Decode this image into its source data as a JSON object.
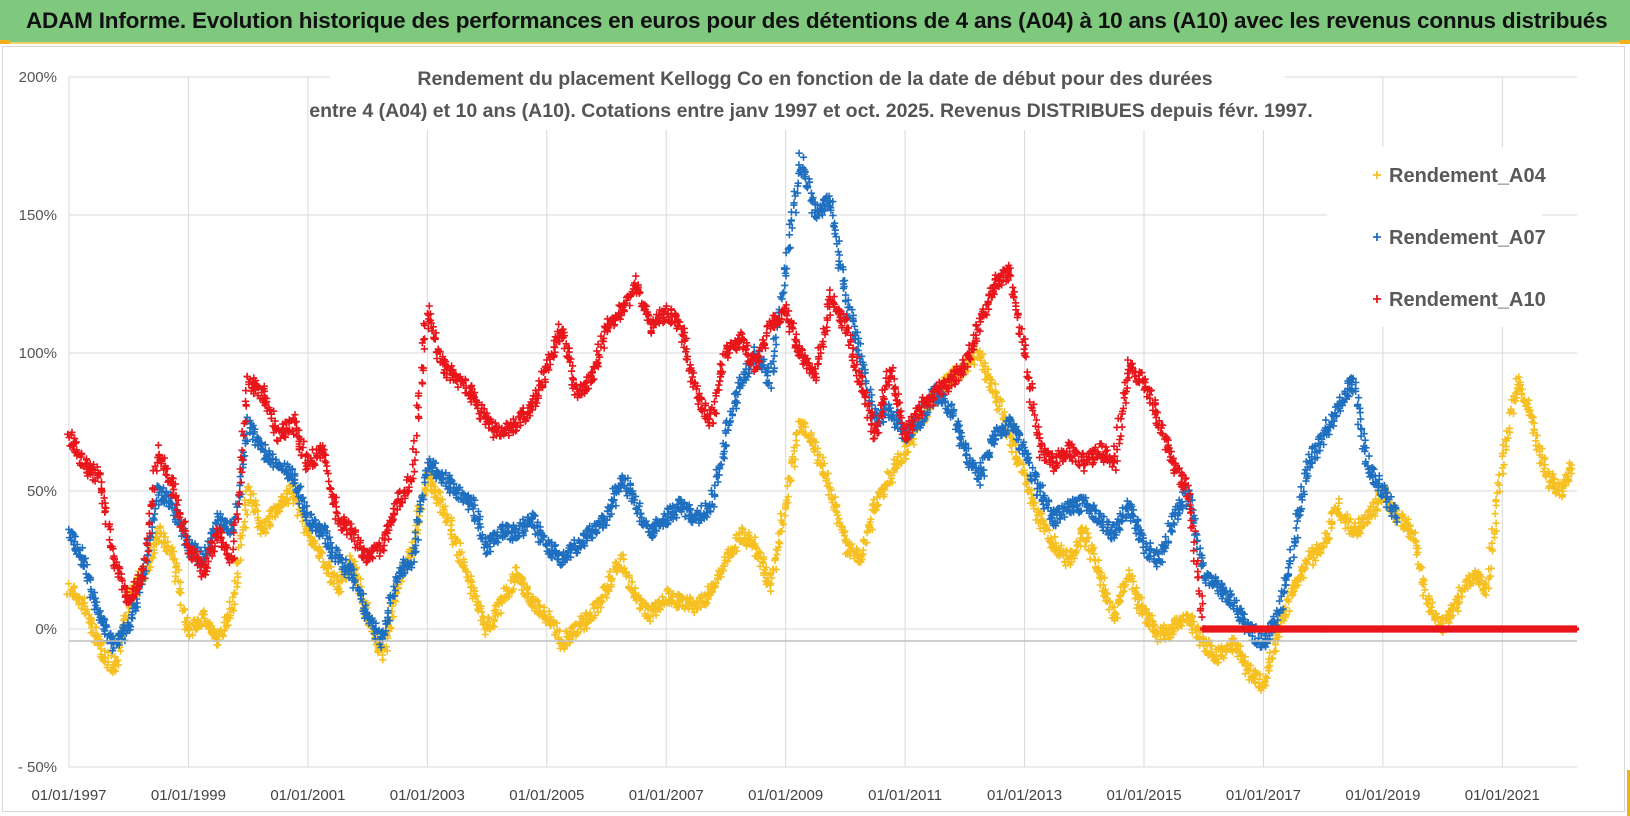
{
  "header": {
    "title": "ADAM Informe. Evolution historique des performances en euros pour des détentions de 4 ans (A04) à 10 ans (A10) avec les revenus connus distribués"
  },
  "chart_data": {
    "type": "scatter",
    "title_lines": [
      "Rendement du placement Kellogg Co en fonction de la date de début pour des durées",
      "entre 4 (A04) et 10 ans (A10). Cotations entre janv 1997 et oct. 2025.  Revenus DISTRIBUES depuis févr. 1997."
    ],
    "marker": "+",
    "xlim": [
      1997.0,
      2022.25
    ],
    "ylim": [
      -50,
      200
    ],
    "y_ticks": [
      -50,
      0,
      50,
      100,
      150,
      200
    ],
    "y_tick_labels": [
      "- 50%",
      "0%",
      "50%",
      "100%",
      "150%",
      "200%"
    ],
    "x_ticks": [
      1997,
      1999,
      2001,
      2003,
      2005,
      2007,
      2009,
      2011,
      2013,
      2015,
      2017,
      2019,
      2021
    ],
    "x_tick_labels": [
      "01/01/1997",
      "01/01/1999",
      "01/01/2001",
      "01/01/2003",
      "01/01/2005",
      "01/01/2007",
      "01/01/2009",
      "01/01/2011",
      "01/01/2013",
      "01/01/2015",
      "01/01/2017",
      "01/01/2019",
      "01/01/2021"
    ],
    "legend_position": "right",
    "series": [
      {
        "name": "Rendement_A04",
        "color": "#f5c020",
        "points": [
          [
            1997.0,
            15
          ],
          [
            1997.25,
            8
          ],
          [
            1997.5,
            -5
          ],
          [
            1997.75,
            -15
          ],
          [
            1998.0,
            10
          ],
          [
            1998.25,
            20
          ],
          [
            1998.5,
            35
          ],
          [
            1998.75,
            25
          ],
          [
            1999.0,
            -2
          ],
          [
            1999.25,
            5
          ],
          [
            1999.5,
            -5
          ],
          [
            1999.75,
            10
          ],
          [
            2000.0,
            50
          ],
          [
            2000.25,
            35
          ],
          [
            2000.5,
            45
          ],
          [
            2000.75,
            50
          ],
          [
            2001.0,
            35
          ],
          [
            2001.25,
            25
          ],
          [
            2001.5,
            15
          ],
          [
            2001.75,
            25
          ],
          [
            2002.0,
            5
          ],
          [
            2002.25,
            -10
          ],
          [
            2002.5,
            15
          ],
          [
            2002.75,
            30
          ],
          [
            2003.0,
            55
          ],
          [
            2003.25,
            45
          ],
          [
            2003.5,
            30
          ],
          [
            2003.75,
            15
          ],
          [
            2004.0,
            0
          ],
          [
            2004.25,
            10
          ],
          [
            2004.5,
            20
          ],
          [
            2004.75,
            10
          ],
          [
            2005.0,
            5
          ],
          [
            2005.25,
            -5
          ],
          [
            2005.5,
            0
          ],
          [
            2005.75,
            5
          ],
          [
            2006.0,
            15
          ],
          [
            2006.25,
            25
          ],
          [
            2006.5,
            10
          ],
          [
            2006.75,
            5
          ],
          [
            2007.0,
            12
          ],
          [
            2007.25,
            10
          ],
          [
            2007.5,
            8
          ],
          [
            2007.75,
            13
          ],
          [
            2008.0,
            25
          ],
          [
            2008.25,
            35
          ],
          [
            2008.5,
            30
          ],
          [
            2008.75,
            15
          ],
          [
            2009.0,
            45
          ],
          [
            2009.25,
            75
          ],
          [
            2009.5,
            65
          ],
          [
            2009.75,
            50
          ],
          [
            2010.0,
            30
          ],
          [
            2010.25,
            25
          ],
          [
            2010.5,
            45
          ],
          [
            2010.75,
            55
          ],
          [
            2011.0,
            65
          ],
          [
            2011.25,
            75
          ],
          [
            2011.5,
            85
          ],
          [
            2011.75,
            90
          ],
          [
            2012.0,
            95
          ],
          [
            2012.25,
            100
          ],
          [
            2012.5,
            85
          ],
          [
            2012.75,
            70
          ],
          [
            2013.0,
            55
          ],
          [
            2013.25,
            40
          ],
          [
            2013.5,
            30
          ],
          [
            2013.75,
            25
          ],
          [
            2014.0,
            35
          ],
          [
            2014.25,
            20
          ],
          [
            2014.5,
            5
          ],
          [
            2014.75,
            20
          ],
          [
            2015.0,
            5
          ],
          [
            2015.25,
            -2
          ],
          [
            2015.5,
            0
          ],
          [
            2015.75,
            5
          ],
          [
            2016.0,
            -5
          ],
          [
            2016.25,
            -10
          ],
          [
            2016.5,
            -5
          ],
          [
            2016.75,
            -15
          ],
          [
            2017.0,
            -20
          ],
          [
            2017.25,
            0
          ],
          [
            2017.5,
            15
          ],
          [
            2017.75,
            25
          ],
          [
            2018.0,
            30
          ],
          [
            2018.25,
            45
          ],
          [
            2018.5,
            35
          ],
          [
            2018.75,
            40
          ],
          [
            2019.0,
            50
          ],
          [
            2019.25,
            40
          ],
          [
            2019.5,
            35
          ],
          [
            2019.75,
            10
          ],
          [
            2020.0,
            0
          ],
          [
            2020.25,
            10
          ],
          [
            2020.5,
            20
          ],
          [
            2020.75,
            15
          ],
          [
            2021.0,
            60
          ],
          [
            2021.25,
            90
          ],
          [
            2021.5,
            75
          ],
          [
            2021.75,
            55
          ],
          [
            2022.0,
            50
          ],
          [
            2022.15,
            60
          ]
        ]
      },
      {
        "name": "Rendement_A07",
        "color": "#1f6fc0",
        "points": [
          [
            1997.0,
            35
          ],
          [
            1997.25,
            25
          ],
          [
            1997.5,
            5
          ],
          [
            1997.75,
            -5
          ],
          [
            1998.0,
            0
          ],
          [
            1998.25,
            20
          ],
          [
            1998.5,
            50
          ],
          [
            1998.75,
            45
          ],
          [
            1999.0,
            30
          ],
          [
            1999.25,
            25
          ],
          [
            1999.5,
            40
          ],
          [
            1999.75,
            35
          ],
          [
            2000.0,
            75
          ],
          [
            2000.25,
            65
          ],
          [
            2000.5,
            60
          ],
          [
            2000.75,
            55
          ],
          [
            2001.0,
            40
          ],
          [
            2001.25,
            35
          ],
          [
            2001.5,
            25
          ],
          [
            2001.75,
            20
          ],
          [
            2002.0,
            5
          ],
          [
            2002.25,
            -5
          ],
          [
            2002.5,
            20
          ],
          [
            2002.75,
            25
          ],
          [
            2003.0,
            60
          ],
          [
            2003.25,
            55
          ],
          [
            2003.5,
            50
          ],
          [
            2003.75,
            45
          ],
          [
            2004.0,
            30
          ],
          [
            2004.25,
            35
          ],
          [
            2004.5,
            35
          ],
          [
            2004.75,
            40
          ],
          [
            2005.0,
            30
          ],
          [
            2005.25,
            25
          ],
          [
            2005.5,
            30
          ],
          [
            2005.75,
            35
          ],
          [
            2006.0,
            40
          ],
          [
            2006.25,
            55
          ],
          [
            2006.5,
            45
          ],
          [
            2006.75,
            35
          ],
          [
            2007.0,
            40
          ],
          [
            2007.25,
            45
          ],
          [
            2007.5,
            40
          ],
          [
            2007.75,
            45
          ],
          [
            2008.0,
            70
          ],
          [
            2008.25,
            90
          ],
          [
            2008.5,
            100
          ],
          [
            2008.75,
            90
          ],
          [
            2009.0,
            130
          ],
          [
            2009.25,
            170
          ],
          [
            2009.5,
            150
          ],
          [
            2009.75,
            155
          ],
          [
            2010.0,
            120
          ],
          [
            2010.25,
            100
          ],
          [
            2010.5,
            75
          ],
          [
            2010.75,
            80
          ],
          [
            2011.0,
            70
          ],
          [
            2011.25,
            75
          ],
          [
            2011.5,
            85
          ],
          [
            2011.75,
            80
          ],
          [
            2012.0,
            65
          ],
          [
            2012.25,
            55
          ],
          [
            2012.5,
            70
          ],
          [
            2012.75,
            75
          ],
          [
            2013.0,
            65
          ],
          [
            2013.25,
            50
          ],
          [
            2013.5,
            40
          ],
          [
            2013.75,
            45
          ],
          [
            2014.0,
            45
          ],
          [
            2014.25,
            40
          ],
          [
            2014.5,
            35
          ],
          [
            2014.75,
            45
          ],
          [
            2015.0,
            30
          ],
          [
            2015.25,
            25
          ],
          [
            2015.5,
            40
          ],
          [
            2015.75,
            50
          ],
          [
            2016.0,
            20
          ],
          [
            2016.25,
            15
          ],
          [
            2016.5,
            10
          ],
          [
            2016.75,
            0
          ],
          [
            2017.0,
            -5
          ],
          [
            2017.25,
            5
          ],
          [
            2017.5,
            30
          ],
          [
            2017.75,
            60
          ],
          [
            2018.0,
            70
          ],
          [
            2018.25,
            80
          ],
          [
            2018.5,
            90
          ],
          [
            2018.75,
            60
          ],
          [
            2019.0,
            50
          ],
          [
            2019.25,
            40
          ]
        ]
      },
      {
        "name": "Rendement_A10",
        "color": "#e8151b",
        "points": [
          [
            1997.0,
            70
          ],
          [
            1997.25,
            60
          ],
          [
            1997.5,
            55
          ],
          [
            1997.75,
            25
          ],
          [
            1998.0,
            10
          ],
          [
            1998.25,
            20
          ],
          [
            1998.5,
            65
          ],
          [
            1998.75,
            50
          ],
          [
            1999.0,
            30
          ],
          [
            1999.25,
            20
          ],
          [
            1999.5,
            35
          ],
          [
            1999.75,
            25
          ],
          [
            2000.0,
            90
          ],
          [
            2000.25,
            85
          ],
          [
            2000.5,
            70
          ],
          [
            2000.75,
            75
          ],
          [
            2001.0,
            60
          ],
          [
            2001.25,
            65
          ],
          [
            2001.5,
            40
          ],
          [
            2001.75,
            35
          ],
          [
            2002.0,
            25
          ],
          [
            2002.25,
            30
          ],
          [
            2002.5,
            45
          ],
          [
            2002.75,
            55
          ],
          [
            2003.0,
            115
          ],
          [
            2003.25,
            95
          ],
          [
            2003.5,
            90
          ],
          [
            2003.75,
            85
          ],
          [
            2004.0,
            75
          ],
          [
            2004.25,
            70
          ],
          [
            2004.5,
            75
          ],
          [
            2004.75,
            80
          ],
          [
            2005.0,
            95
          ],
          [
            2005.25,
            110
          ],
          [
            2005.5,
            85
          ],
          [
            2005.75,
            90
          ],
          [
            2006.0,
            110
          ],
          [
            2006.25,
            115
          ],
          [
            2006.5,
            125
          ],
          [
            2006.75,
            110
          ],
          [
            2007.0,
            115
          ],
          [
            2007.25,
            110
          ],
          [
            2007.5,
            85
          ],
          [
            2007.75,
            75
          ],
          [
            2008.0,
            100
          ],
          [
            2008.25,
            105
          ],
          [
            2008.5,
            95
          ],
          [
            2008.75,
            110
          ],
          [
            2009.0,
            115
          ],
          [
            2009.25,
            100
          ],
          [
            2009.5,
            90
          ],
          [
            2009.75,
            120
          ],
          [
            2010.0,
            110
          ],
          [
            2010.25,
            90
          ],
          [
            2010.5,
            70
          ],
          [
            2010.75,
            95
          ],
          [
            2011.0,
            70
          ],
          [
            2011.25,
            80
          ],
          [
            2011.5,
            85
          ],
          [
            2011.75,
            90
          ],
          [
            2012.0,
            95
          ],
          [
            2012.25,
            110
          ],
          [
            2012.5,
            125
          ],
          [
            2012.75,
            130
          ],
          [
            2013.0,
            100
          ],
          [
            2013.25,
            65
          ],
          [
            2013.5,
            60
          ],
          [
            2013.75,
            65
          ],
          [
            2014.0,
            60
          ],
          [
            2014.25,
            65
          ],
          [
            2014.5,
            60
          ],
          [
            2014.75,
            95
          ],
          [
            2015.0,
            90
          ],
          [
            2015.25,
            75
          ],
          [
            2015.5,
            60
          ],
          [
            2015.75,
            50
          ],
          [
            2016.0,
            0
          ],
          [
            2017.0,
            0
          ],
          [
            2018.0,
            0
          ],
          [
            2019.0,
            0
          ],
          [
            2020.0,
            0
          ],
          [
            2021.0,
            0
          ],
          [
            2022.25,
            0
          ]
        ]
      }
    ]
  }
}
